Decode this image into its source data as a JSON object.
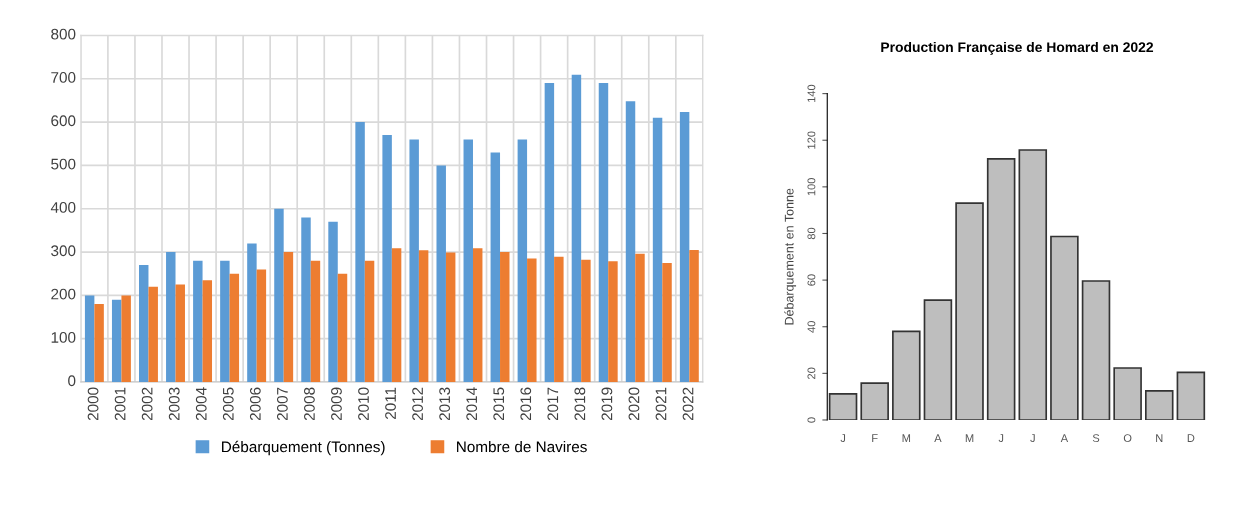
{
  "chart_data": [
    {
      "type": "bar",
      "categories": [
        "2000",
        "2001",
        "2002",
        "2003",
        "2004",
        "2005",
        "2006",
        "2007",
        "2008",
        "2009",
        "2010",
        "2011",
        "2012",
        "2013",
        "2014",
        "2015",
        "2016",
        "2017",
        "2018",
        "2019",
        "2020",
        "2021",
        "2022"
      ],
      "series": [
        {
          "name": "Débarquement (Tonnes)",
          "color": "#5b9bd5",
          "values": [
            200,
            190,
            270,
            300,
            280,
            280,
            320,
            400,
            380,
            370,
            600,
            570,
            560,
            500,
            560,
            530,
            560,
            690,
            709,
            690,
            648,
            610,
            623
          ]
        },
        {
          "name": "Nombre de Navires",
          "color": "#ed7d31",
          "values": [
            180,
            200,
            220,
            225,
            235,
            250,
            260,
            300,
            280,
            250,
            280,
            309,
            304,
            299,
            309,
            300,
            285,
            289,
            282,
            279,
            296,
            275,
            305
          ]
        }
      ],
      "ylim": [
        0,
        800
      ],
      "yticks": [
        0,
        100,
        200,
        300,
        400,
        500,
        600,
        700,
        800
      ],
      "grid": true,
      "legend": "bottom"
    },
    {
      "type": "bar",
      "title": "Production Française de Homard en 2022",
      "ylabel": "Débarquement en Tonne",
      "categories": [
        "J",
        "F",
        "M",
        "A",
        "M",
        "J",
        "J",
        "A",
        "S",
        "O",
        "N",
        "D"
      ],
      "values": [
        11.2,
        15.8,
        38,
        51.4,
        93,
        112,
        115.8,
        78.7,
        59.6,
        22.3,
        12.5,
        20.4
      ],
      "color": "#bebebe",
      "ylim": [
        0,
        140
      ],
      "yticks": [
        0,
        20,
        40,
        60,
        80,
        100,
        120,
        140
      ],
      "grid": false
    }
  ]
}
